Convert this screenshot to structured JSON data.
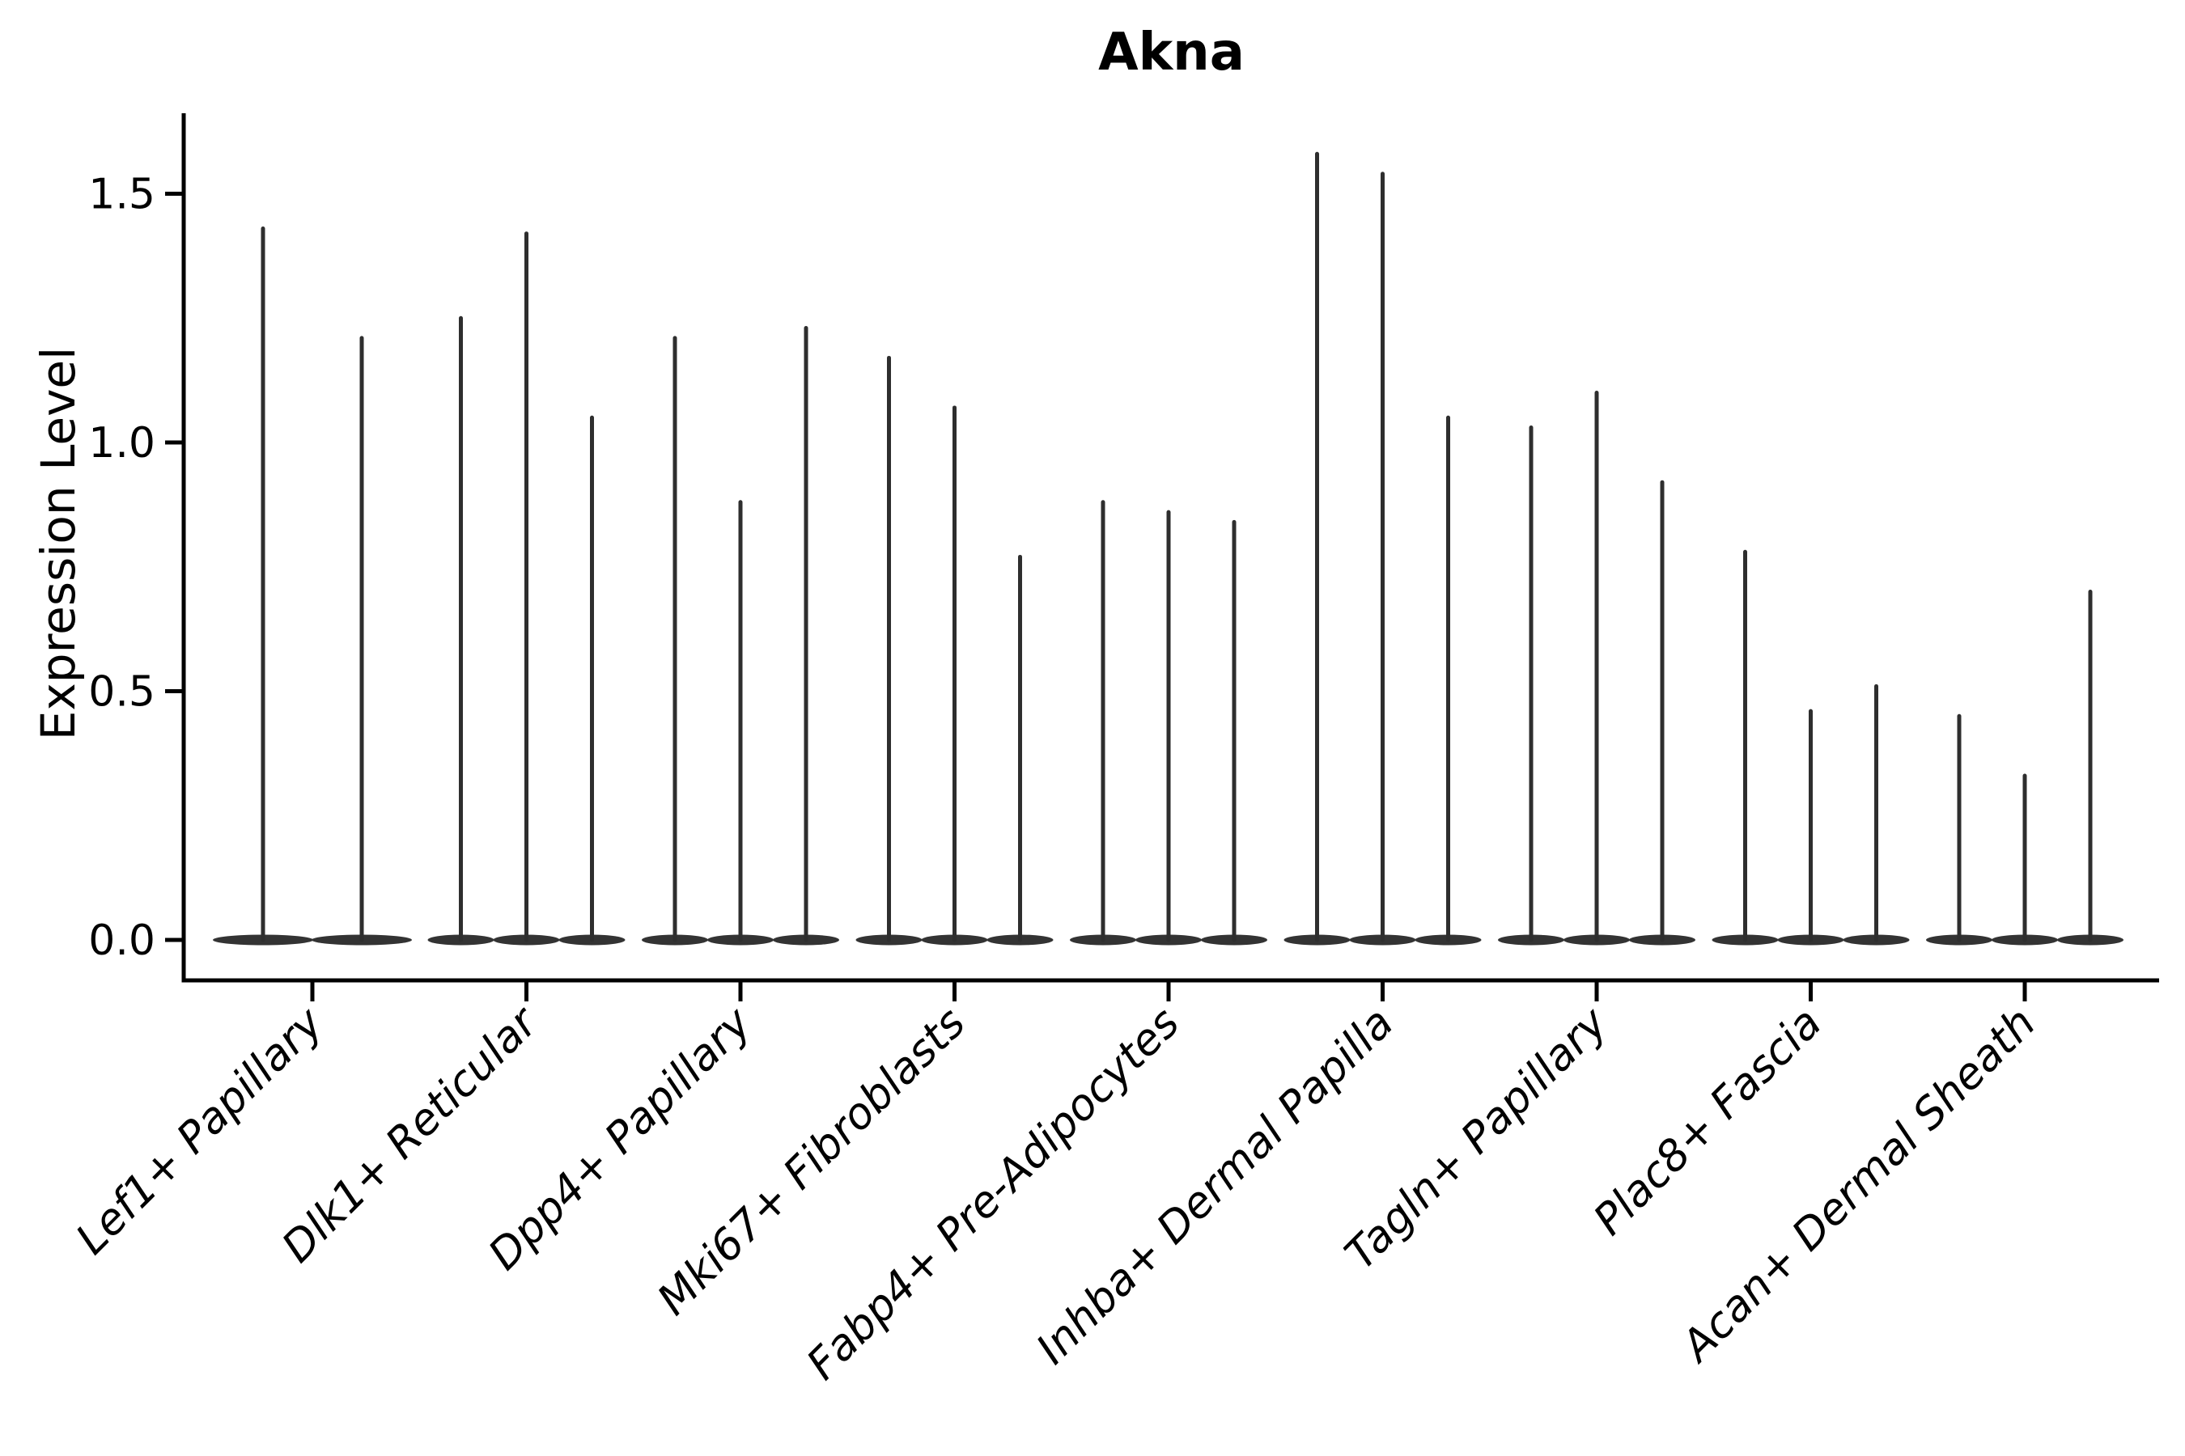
{
  "chart_data": {
    "type": "violin",
    "title": "Akna",
    "ylabel": "Expression Level",
    "xlabel": "",
    "ytick_labels": [
      "0.0",
      "0.5",
      "1.0",
      "1.5"
    ],
    "ytick_values": [
      0.0,
      0.5,
      1.0,
      1.5
    ],
    "ylim": [
      -0.08,
      1.66
    ],
    "grid": false,
    "legend": "none",
    "xtick_rotation": 45,
    "violin_baseline_value": 0.0,
    "categories": [
      "Lef1+ Papillary",
      "Dlk1+ Reticular",
      "Dpp4+ Papillary",
      "Mki67+ Fibroblasts",
      "Fabp4+ Pre-Adipocytes",
      "Inhba+ Dermal Papilla",
      "Tagln+ Papillary",
      "Plac8+ Fascia",
      "Acan+ Dermal Sheath"
    ],
    "groups": [
      {
        "category": "Lef1+ Papillary",
        "violin_maxima": [
          1.43,
          1.21
        ]
      },
      {
        "category": "Dlk1+ Reticular",
        "violin_maxima": [
          1.25,
          1.42,
          1.05
        ]
      },
      {
        "category": "Dpp4+ Papillary",
        "violin_maxima": [
          1.21,
          0.88,
          1.23
        ]
      },
      {
        "category": "Mki67+ Fibroblasts",
        "violin_maxima": [
          1.17,
          1.07,
          0.77
        ]
      },
      {
        "category": "Fabp4+ Pre-Adipocytes",
        "violin_maxima": [
          0.88,
          0.86,
          0.84
        ]
      },
      {
        "category": "Inhba+ Dermal Papilla",
        "violin_maxima": [
          1.58,
          1.54,
          1.05
        ]
      },
      {
        "category": "Tagln+ Papillary",
        "violin_maxima": [
          1.03,
          1.1,
          0.92
        ]
      },
      {
        "category": "Plac8+ Fascia",
        "violin_maxima": [
          0.78,
          0.46,
          0.51
        ]
      },
      {
        "category": "Acan+ Dermal Sheath",
        "violin_maxima": [
          0.45,
          0.33,
          0.7
        ]
      }
    ]
  },
  "colors": {
    "violin": "#2e2e2e",
    "violin_base": "#333333",
    "axis": "#000000",
    "text": "#000000",
    "background": "#ffffff"
  }
}
